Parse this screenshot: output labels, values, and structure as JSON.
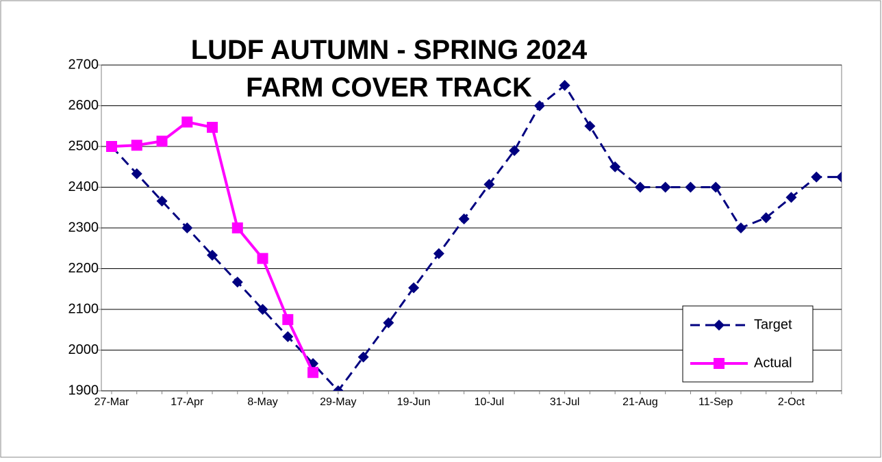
{
  "chart_data": {
    "type": "line",
    "title": "LUDF AUTUMN - SPRING 2024 FARM COVER TRACK",
    "categories": [
      "27-Mar",
      null,
      null,
      "17-Apr",
      null,
      null,
      "8-May",
      null,
      null,
      "29-May",
      null,
      null,
      "19-Jun",
      null,
      null,
      "10-Jul",
      null,
      null,
      "31-Jul",
      null,
      null,
      "21-Aug",
      null,
      null,
      "11-Sep",
      null,
      null,
      "2-Oct",
      null,
      null
    ],
    "series": [
      {
        "name": "Target",
        "color": "#000080",
        "values": [
          2500,
          2433,
          2366,
          2300,
          2233,
          2167,
          2100,
          2033,
          1967,
          1900,
          1983,
          2067,
          2153,
          2237,
          2322,
          2407,
          2490,
          2600,
          2650,
          2550,
          2450,
          2400,
          2400,
          2400,
          2400,
          2300,
          2325,
          2375,
          2425,
          2425
        ]
      },
      {
        "name": "Actual",
        "color": "#ff00ff",
        "values": [
          2500,
          2503,
          2513,
          2560,
          2547,
          2300,
          2225,
          2075,
          1945,
          null,
          null,
          null,
          null,
          null,
          null,
          null,
          null,
          null,
          null,
          null,
          null,
          null,
          null,
          null,
          null,
          null,
          null,
          null,
          null,
          null
        ]
      }
    ],
    "ylim": [
      1900,
      2700
    ],
    "yticks": [
      1900,
      2000,
      2100,
      2200,
      2300,
      2400,
      2500,
      2600,
      2700
    ],
    "grid": true,
    "legend": "lower right"
  }
}
